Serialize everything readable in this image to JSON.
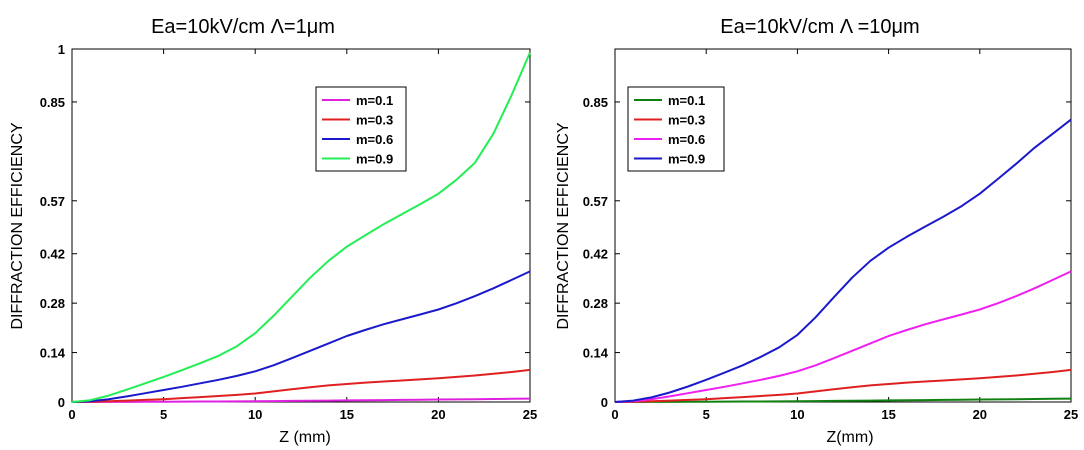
{
  "chart_data": [
    {
      "type": "line",
      "title": "Ea=10kV/cm  Λ=1μm",
      "xlabel": "Z (mm)",
      "ylabel": "DIFFRACTION EFFICIENCY",
      "xlim": [
        0,
        25
      ],
      "ylim": [
        0,
        1
      ],
      "xticks": [
        0,
        5,
        10,
        15,
        20,
        25
      ],
      "xtick_labels": [
        "0",
        "5",
        "10",
        "15",
        "20",
        "25"
      ],
      "yticks": [
        0,
        0.14,
        0.28,
        0.42,
        0.57,
        0.85,
        1
      ],
      "ytick_labels": [
        "0",
        "0.14",
        "0.28",
        "0.42",
        "0.57",
        "0.85",
        "1"
      ],
      "grid": false,
      "legend_position": "upper-right",
      "x": [
        0,
        1,
        2,
        3,
        4,
        5,
        6,
        7,
        8,
        9,
        10,
        11,
        12,
        13,
        14,
        15,
        16,
        17,
        18,
        19,
        20,
        21,
        22,
        23,
        24,
        25
      ],
      "series": [
        {
          "name": "m=0.1",
          "color": "#e020e0",
          "values": [
            0,
            0,
            0.0002,
            0.0004,
            0.0006,
            0.0009,
            0.0011,
            0.0013,
            0.0015,
            0.0018,
            0.002,
            0.0025,
            0.003,
            0.0035,
            0.004,
            0.0045,
            0.005,
            0.0055,
            0.006,
            0.0065,
            0.007,
            0.0075,
            0.008,
            0.0085,
            0.009,
            0.0095
          ]
        },
        {
          "name": "m=0.3",
          "color": "#e02020",
          "values": [
            0,
            0.0005,
            0.002,
            0.004,
            0.006,
            0.008,
            0.011,
            0.014,
            0.017,
            0.02,
            0.024,
            0.03,
            0.036,
            0.042,
            0.047,
            0.051,
            0.055,
            0.058,
            0.061,
            0.064,
            0.067,
            0.071,
            0.075,
            0.08,
            0.085,
            0.091
          ]
        },
        {
          "name": "m=0.6",
          "color": "#1a1acc",
          "values": [
            0,
            0.002,
            0.008,
            0.016,
            0.025,
            0.034,
            0.043,
            0.053,
            0.063,
            0.074,
            0.087,
            0.104,
            0.124,
            0.145,
            0.166,
            0.187,
            0.204,
            0.22,
            0.234,
            0.248,
            0.262,
            0.28,
            0.3,
            0.322,
            0.346,
            0.37
          ]
        },
        {
          "name": "m=0.9",
          "color": "#22ee55",
          "values": [
            0,
            0.005,
            0.018,
            0.035,
            0.053,
            0.071,
            0.09,
            0.11,
            0.131,
            0.158,
            0.195,
            0.244,
            0.298,
            0.352,
            0.4,
            0.44,
            0.472,
            0.503,
            0.532,
            0.56,
            0.59,
            0.63,
            0.678,
            0.76,
            0.87,
            0.99
          ]
        }
      ]
    },
    {
      "type": "line",
      "title": "Ea=10kV/cm     Λ =10μm",
      "xlabel": "Z(mm)",
      "ylabel": "DIFFRACTION EFFICIENCY",
      "xlim": [
        0,
        25
      ],
      "ylim": [
        0,
        1
      ],
      "xticks": [
        0,
        5,
        10,
        15,
        20,
        25
      ],
      "xtick_labels": [
        "0",
        "5",
        "10",
        "15",
        "20",
        "25"
      ],
      "yticks": [
        0,
        0.14,
        0.28,
        0.42,
        0.57,
        0.85
      ],
      "ytick_labels": [
        "0",
        "0.14",
        "0.28",
        "0.42",
        "0.57",
        "0.85"
      ],
      "grid": false,
      "legend_position": "upper-left",
      "x": [
        0,
        1,
        2,
        3,
        4,
        5,
        6,
        7,
        8,
        9,
        10,
        11,
        12,
        13,
        14,
        15,
        16,
        17,
        18,
        19,
        20,
        21,
        22,
        23,
        24,
        25
      ],
      "series": [
        {
          "name": "m=0.1",
          "color": "#108010",
          "values": [
            0,
            0,
            0.0002,
            0.0004,
            0.0006,
            0.0009,
            0.0011,
            0.0013,
            0.0015,
            0.0018,
            0.002,
            0.0025,
            0.003,
            0.0035,
            0.004,
            0.0045,
            0.005,
            0.0055,
            0.006,
            0.0065,
            0.007,
            0.0075,
            0.008,
            0.0085,
            0.009,
            0.0095
          ]
        },
        {
          "name": "m=0.3",
          "color": "#e02020",
          "values": [
            0,
            0.0005,
            0.002,
            0.004,
            0.006,
            0.008,
            0.011,
            0.014,
            0.017,
            0.02,
            0.024,
            0.03,
            0.036,
            0.042,
            0.047,
            0.051,
            0.055,
            0.058,
            0.061,
            0.064,
            0.067,
            0.071,
            0.075,
            0.08,
            0.085,
            0.091
          ]
        },
        {
          "name": "m=0.6",
          "color": "#f020f0",
          "values": [
            0,
            0.002,
            0.008,
            0.016,
            0.025,
            0.034,
            0.043,
            0.053,
            0.063,
            0.074,
            0.087,
            0.104,
            0.124,
            0.145,
            0.166,
            0.187,
            0.204,
            0.22,
            0.234,
            0.248,
            0.262,
            0.28,
            0.3,
            0.322,
            0.346,
            0.37
          ]
        },
        {
          "name": "m=0.9",
          "color": "#1a1acc",
          "values": [
            0,
            0.004,
            0.013,
            0.027,
            0.044,
            0.063,
            0.083,
            0.104,
            0.128,
            0.155,
            0.19,
            0.24,
            0.297,
            0.352,
            0.4,
            0.437,
            0.468,
            0.497,
            0.525,
            0.555,
            0.59,
            0.632,
            0.675,
            0.72,
            0.76,
            0.8
          ]
        }
      ]
    }
  ]
}
